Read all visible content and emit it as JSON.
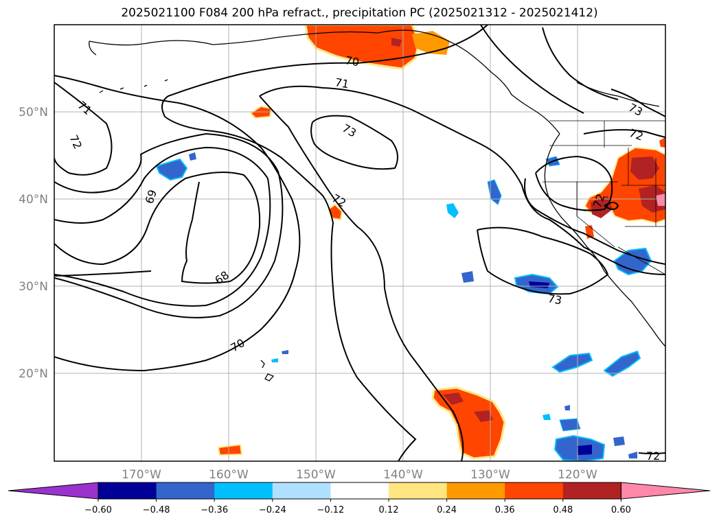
{
  "title": "2025021100 F084 200 hPa refract., precipitation PC (2025021312 - 2025021412)",
  "map": {
    "lon_labels": [
      "170°W",
      "160°W",
      "150°W",
      "140°W",
      "130°W",
      "120°W"
    ],
    "lat_labels": [
      "50°N",
      "40°N",
      "30°N",
      "20°N"
    ],
    "contour_labels": [
      "71",
      "72",
      "69",
      "68",
      "70",
      "70",
      "71",
      "73",
      "72",
      "73",
      "73",
      "72",
      "72",
      "72"
    ]
  },
  "colorbar": {
    "colors": [
      "#9933cc",
      "#000099",
      "#3366cc",
      "#00bfff",
      "#b0e0ff",
      "#ffffff",
      "#ffe680",
      "#ff9900",
      "#ff4500",
      "#b22222",
      "#ff88aa"
    ],
    "ticks": [
      "−0.60",
      "−0.48",
      "−0.36",
      "−0.24",
      "−0.12",
      "0.12",
      "0.24",
      "0.36",
      "0.48",
      "0.60"
    ]
  }
}
